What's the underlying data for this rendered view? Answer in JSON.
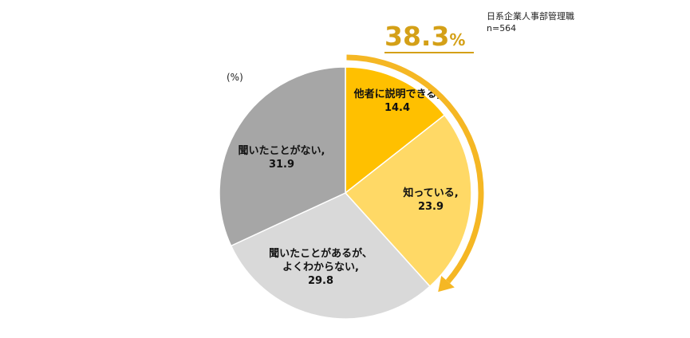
{
  "chart_data": {
    "type": "pie",
    "unit_label": "(%)",
    "note_lines": [
      "日系企業人事部管理職",
      "n=564"
    ],
    "slices": [
      {
        "label": "他者に説明できる,",
        "value": 14.4,
        "value_text": "14.4",
        "color": "#FFC000"
      },
      {
        "label": "知っている,",
        "value": 23.9,
        "value_text": "23.9",
        "color": "#FFD966"
      },
      {
        "label": "聞いたことがあるが、\nよくわからない,",
        "value": 29.8,
        "value_text": "29.8",
        "color": "#D9D9D9"
      },
      {
        "label": "聞いたことがない,",
        "value": 31.9,
        "value_text": "31.9",
        "color": "#A6A6A6"
      }
    ],
    "start_angle_deg": 0,
    "direction": "clockwise",
    "callout": {
      "value_text": "38.3",
      "unit_text": "%",
      "color": "#D4A017",
      "arrow_color": "#F5B724"
    }
  }
}
